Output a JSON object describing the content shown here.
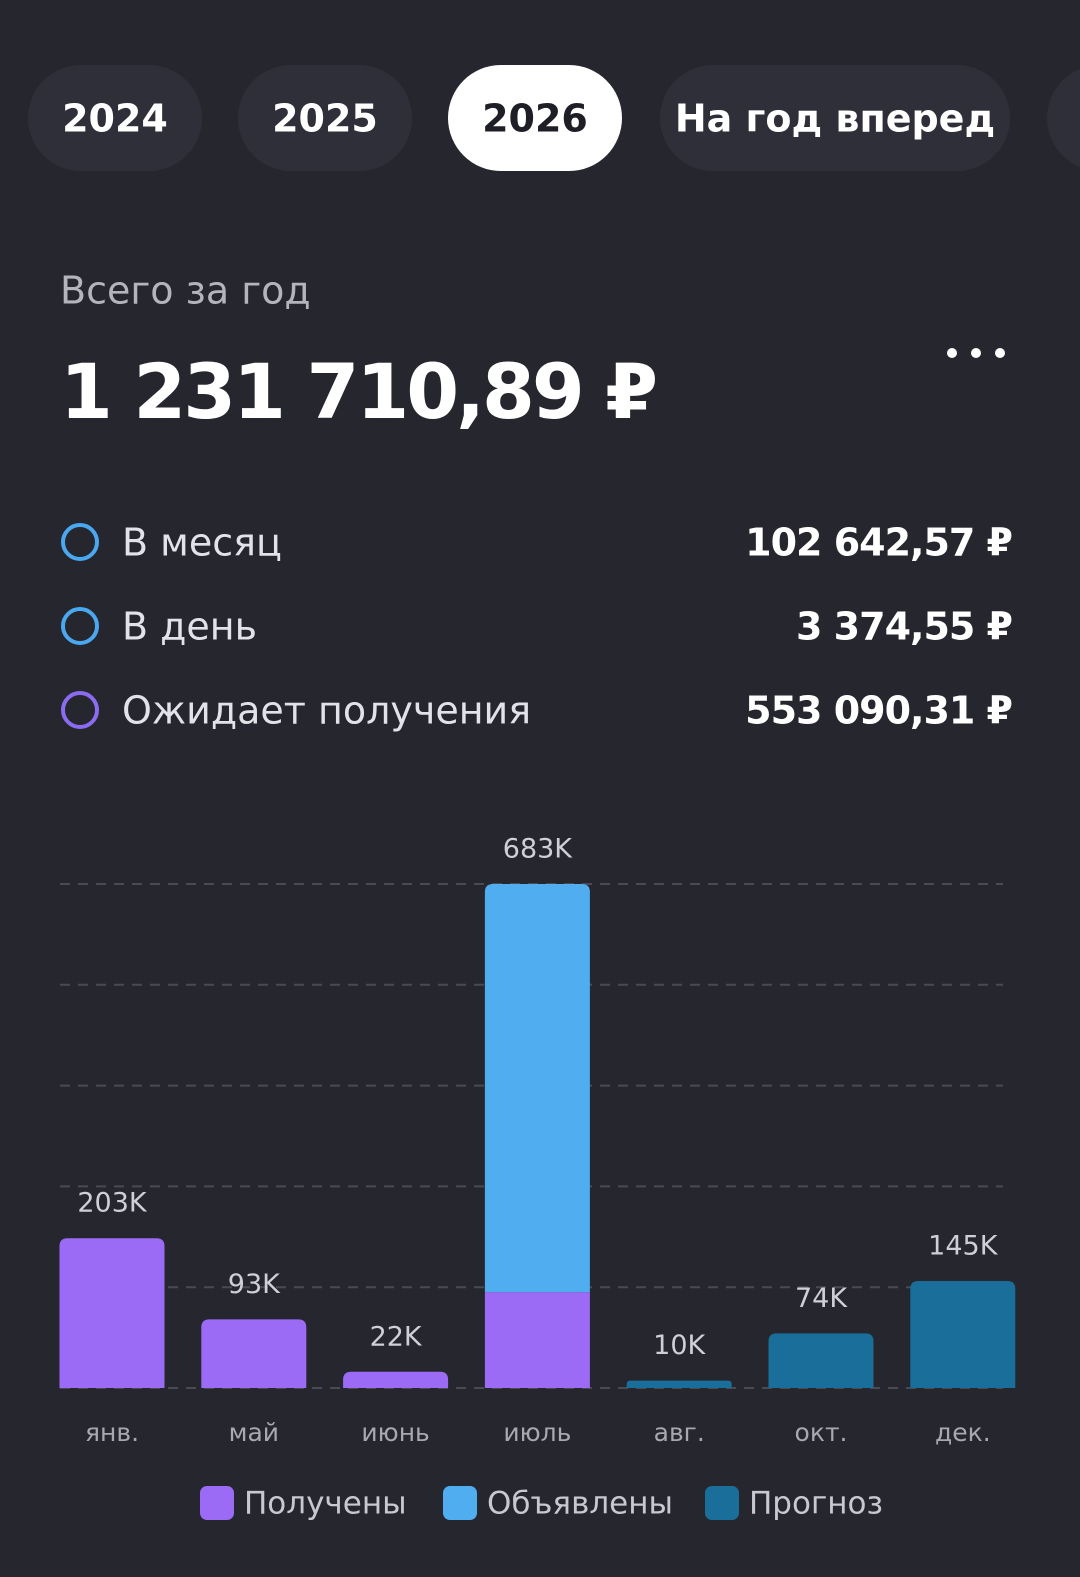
{
  "tabs": {
    "items": [
      "2024",
      "2025",
      "2026",
      "На год вперед"
    ],
    "active": 2
  },
  "summary": {
    "title": "Всего за год",
    "amount": "1 231 710,89 ₽",
    "rows": [
      {
        "label": "В месяц",
        "value": "102 642,57 ₽",
        "color": "#4aa8f0"
      },
      {
        "label": "В день",
        "value": "3 374,55 ₽",
        "color": "#4aa8f0"
      },
      {
        "label": "Ожидает получения",
        "value": "553 090,31 ₽",
        "color": "#8a6cf0"
      }
    ]
  },
  "chart_data": {
    "type": "stacked_bar",
    "categories": [
      "янв.",
      "май",
      "июнь",
      "июль",
      "авг.",
      "окт.",
      "дек."
    ],
    "series": [
      {
        "name": "Получены",
        "color": "#9b6bf5",
        "values": [
          203000,
          93000,
          22000,
          130000,
          null,
          null,
          null
        ]
      },
      {
        "name": "Объявлены",
        "color": "#50adf0",
        "values": [
          null,
          null,
          null,
          553000,
          null,
          null,
          null
        ]
      },
      {
        "name": "Прогноз",
        "color": "#1a6e9a",
        "values": [
          null,
          null,
          null,
          null,
          10000,
          74000,
          145000
        ]
      }
    ],
    "totals": [
      203000,
      93000,
      22000,
      683000,
      10000,
      74000,
      145000
    ],
    "total_labels": [
      "203K",
      "93K",
      "22K",
      "683K",
      "10K",
      "74K",
      "145K"
    ],
    "ylim": [
      0,
      683000
    ],
    "yticks": [
      0,
      136600,
      273200,
      409800,
      546400,
      683000
    ],
    "grid": true
  }
}
